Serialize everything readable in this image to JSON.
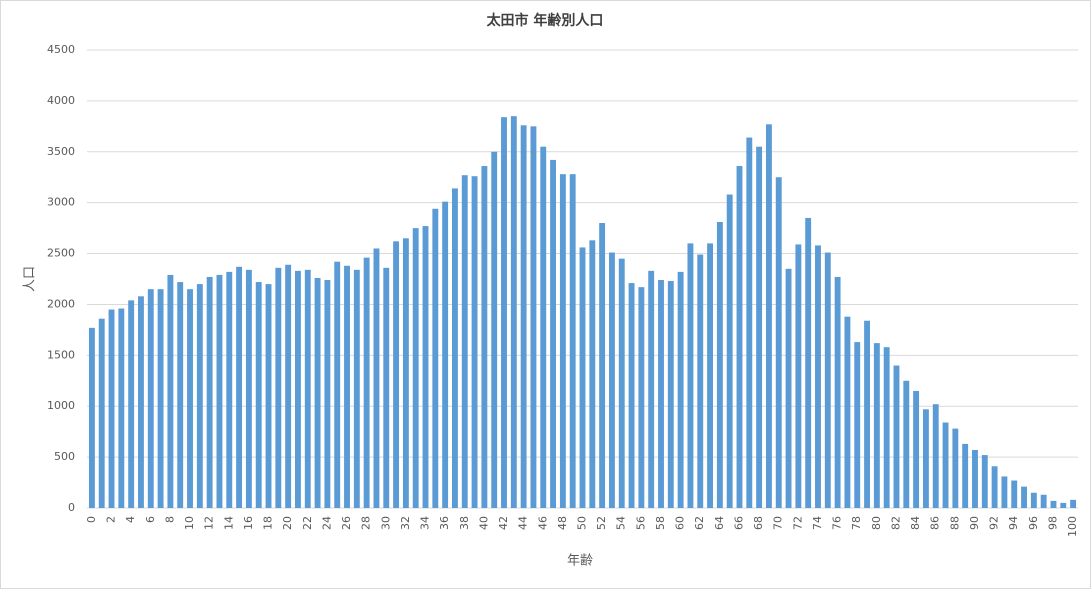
{
  "chart_data": {
    "type": "bar",
    "title": "太田市 年齢別人口",
    "x_label": "年齢",
    "y_label": "人口",
    "categories": [
      "0",
      null,
      "2",
      null,
      "4",
      null,
      "6",
      null,
      "8",
      null,
      "10",
      null,
      "12",
      null,
      "14",
      null,
      "16",
      null,
      "18",
      null,
      "20",
      null,
      "22",
      null,
      "24",
      null,
      "26",
      null,
      "28",
      null,
      "30",
      null,
      "32",
      null,
      "34",
      null,
      "36",
      null,
      "38",
      null,
      "40",
      null,
      "42",
      null,
      "44",
      null,
      "46",
      null,
      "48",
      null,
      "50",
      null,
      "52",
      null,
      "54",
      null,
      "56",
      null,
      "58",
      null,
      "60",
      null,
      "62",
      null,
      "64",
      null,
      "66",
      null,
      "68",
      null,
      "70",
      null,
      "72",
      null,
      "74",
      null,
      "76",
      null,
      "78",
      null,
      "80",
      null,
      "82",
      null,
      "84",
      null,
      "86",
      null,
      "88",
      null,
      "90",
      null,
      "92",
      null,
      "94",
      null,
      "96",
      null,
      "98",
      null,
      "100"
    ],
    "values": [
      1770,
      1860,
      1950,
      1960,
      2040,
      2080,
      2150,
      2150,
      2290,
      2220,
      2150,
      2200,
      2270,
      2290,
      2320,
      2370,
      2340,
      2220,
      2200,
      2360,
      2390,
      2330,
      2340,
      2260,
      2240,
      2420,
      2380,
      2340,
      2460,
      2550,
      2360,
      2620,
      2650,
      2750,
      2770,
      2940,
      3010,
      3140,
      3270,
      3260,
      3360,
      3500,
      3840,
      3850,
      3760,
      3750,
      3550,
      3420,
      3280,
      3280,
      2560,
      2630,
      2800,
      2510,
      2450,
      2210,
      2170,
      2330,
      2240,
      2230,
      2320,
      2600,
      2490,
      2600,
      2810,
      3080,
      3360,
      3640,
      3550,
      3770,
      3250,
      2350,
      2590,
      2850,
      2580,
      2510,
      2270,
      1880,
      1630,
      1840,
      1620,
      1580,
      1400,
      1250,
      1150,
      970,
      1020,
      840,
      780,
      630,
      570,
      520,
      410,
      310,
      270,
      210,
      150,
      130,
      70,
      50,
      80
    ],
    "color": "#5b9bd5",
    "ylim": [
      0,
      4500
    ],
    "yticks": [
      0,
      500,
      1000,
      1500,
      2000,
      2500,
      3000,
      3500,
      4000,
      4500
    ],
    "grid": true
  }
}
